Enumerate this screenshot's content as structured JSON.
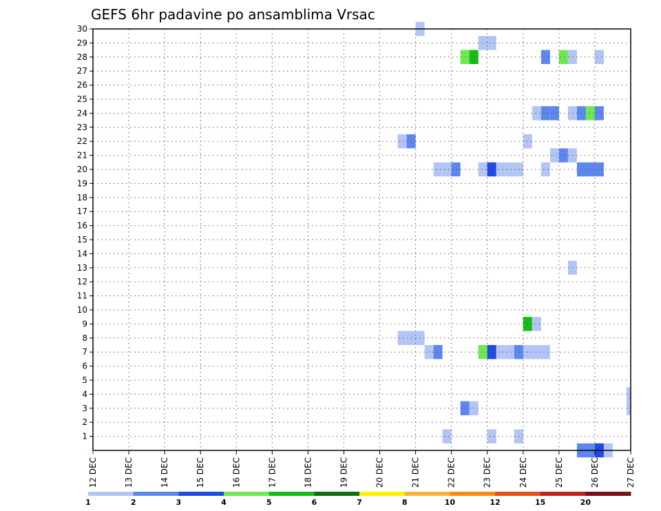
{
  "chart_data": {
    "type": "heatmap",
    "title": "GEFS 6hr padavine po ansamblima Vrsac",
    "xlabel": "",
    "ylabel": "",
    "x_ticks": [
      "12 DEC",
      "13 DEC",
      "14 DEC",
      "15 DEC",
      "16 DEC",
      "17 DEC",
      "18 DEC",
      "19 DEC",
      "20 DEC",
      "21 DEC",
      "22 DEC",
      "23 DEC",
      "24 DEC",
      "25 DEC",
      "26 DEC",
      "27 DEC"
    ],
    "y_ticks": [
      1,
      2,
      3,
      4,
      5,
      6,
      7,
      8,
      9,
      10,
      11,
      12,
      13,
      14,
      15,
      16,
      17,
      18,
      19,
      20,
      21,
      22,
      23,
      24,
      25,
      26,
      27,
      28,
      29,
      30
    ],
    "xlim": [
      "12 DEC 00",
      "27 DEC 00"
    ],
    "ylim": [
      0,
      30
    ],
    "grid": true,
    "colorbar": {
      "colors": [
        "#b3c5f5",
        "#5d87ee",
        "#1e4ce3",
        "#6ee84e",
        "#14bc14",
        "#0f6e0f",
        "#fff100",
        "#fdb038",
        "#fb8b10",
        "#e54f18",
        "#c0231e",
        "#7a0e1a"
      ],
      "labels": [
        "1",
        "2",
        "3",
        "4",
        "5",
        "6",
        "7",
        "8",
        "10",
        "12",
        "15",
        "20"
      ]
    },
    "cells": [
      {
        "day": 21.0,
        "member": 30,
        "level": 1
      },
      {
        "day": 22.75,
        "member": 29,
        "level": 1
      },
      {
        "day": 23.0,
        "member": 29,
        "level": 1
      },
      {
        "day": 22.25,
        "member": 28,
        "level": 4
      },
      {
        "day": 22.5,
        "member": 28,
        "level": 5
      },
      {
        "day": 24.5,
        "member": 28,
        "level": 2
      },
      {
        "day": 25.0,
        "member": 28,
        "level": 4
      },
      {
        "day": 25.25,
        "member": 28,
        "level": 1
      },
      {
        "day": 26.0,
        "member": 28,
        "level": 1
      },
      {
        "day": 24.25,
        "member": 24,
        "level": 1
      },
      {
        "day": 24.5,
        "member": 24,
        "level": 2
      },
      {
        "day": 24.75,
        "member": 24,
        "level": 2
      },
      {
        "day": 25.25,
        "member": 24,
        "level": 1
      },
      {
        "day": 25.5,
        "member": 24,
        "level": 2
      },
      {
        "day": 25.75,
        "member": 24,
        "level": 4
      },
      {
        "day": 26.0,
        "member": 24,
        "level": 2
      },
      {
        "day": 20.5,
        "member": 22,
        "level": 1
      },
      {
        "day": 20.75,
        "member": 22,
        "level": 2
      },
      {
        "day": 24.0,
        "member": 22,
        "level": 1
      },
      {
        "day": 24.75,
        "member": 21,
        "level": 1
      },
      {
        "day": 25.0,
        "member": 21,
        "level": 2
      },
      {
        "day": 25.25,
        "member": 21,
        "level": 1
      },
      {
        "day": 21.5,
        "member": 20,
        "level": 1
      },
      {
        "day": 21.75,
        "member": 20,
        "level": 1
      },
      {
        "day": 22.0,
        "member": 20,
        "level": 2
      },
      {
        "day": 22.75,
        "member": 20,
        "level": 1
      },
      {
        "day": 23.0,
        "member": 20,
        "level": 3
      },
      {
        "day": 23.25,
        "member": 20,
        "level": 1
      },
      {
        "day": 23.5,
        "member": 20,
        "level": 1
      },
      {
        "day": 23.75,
        "member": 20,
        "level": 1
      },
      {
        "day": 24.5,
        "member": 20,
        "level": 1
      },
      {
        "day": 25.5,
        "member": 20,
        "level": 2
      },
      {
        "day": 25.75,
        "member": 20,
        "level": 2
      },
      {
        "day": 26.0,
        "member": 20,
        "level": 2
      },
      {
        "day": 25.25,
        "member": 13,
        "level": 1
      },
      {
        "day": 24.0,
        "member": 9,
        "level": 5
      },
      {
        "day": 24.25,
        "member": 9,
        "level": 1
      },
      {
        "day": 20.5,
        "member": 8,
        "level": 1
      },
      {
        "day": 20.75,
        "member": 8,
        "level": 1
      },
      {
        "day": 21.0,
        "member": 8,
        "level": 1
      },
      {
        "day": 21.25,
        "member": 7,
        "level": 1
      },
      {
        "day": 21.5,
        "member": 7,
        "level": 2
      },
      {
        "day": 22.75,
        "member": 7,
        "level": 4
      },
      {
        "day": 23.0,
        "member": 7,
        "level": 3
      },
      {
        "day": 23.25,
        "member": 7,
        "level": 1
      },
      {
        "day": 23.5,
        "member": 7,
        "level": 1
      },
      {
        "day": 23.75,
        "member": 7,
        "level": 2
      },
      {
        "day": 24.0,
        "member": 7,
        "level": 1
      },
      {
        "day": 24.25,
        "member": 7,
        "level": 1
      },
      {
        "day": 24.5,
        "member": 7,
        "level": 1
      },
      {
        "day": 27.0,
        "member": 4,
        "level": 1
      },
      {
        "day": 27.0,
        "member": 3,
        "level": 1
      },
      {
        "day": 22.25,
        "member": 3,
        "level": 2
      },
      {
        "day": 22.5,
        "member": 3,
        "level": 1
      },
      {
        "day": 21.75,
        "member": 1,
        "level": 1
      },
      {
        "day": 23.0,
        "member": 1,
        "level": 1
      },
      {
        "day": 23.75,
        "member": 1,
        "level": 1
      },
      {
        "day": 25.5,
        "member": 0,
        "level": 2
      },
      {
        "day": 25.75,
        "member": 0,
        "level": 2
      },
      {
        "day": 26.0,
        "member": 0,
        "level": 3
      },
      {
        "day": 26.25,
        "member": 0,
        "level": 1
      }
    ]
  }
}
